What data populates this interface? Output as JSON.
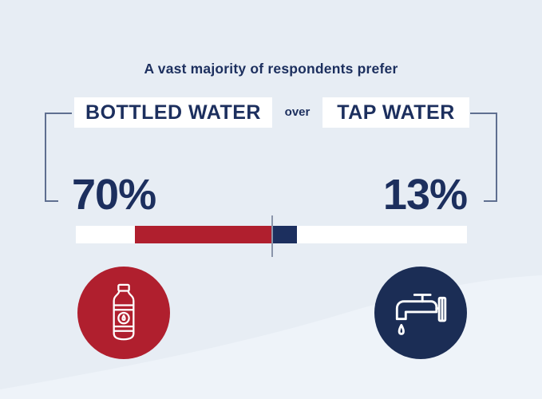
{
  "title": "A vast majority of respondents prefer",
  "comparison": {
    "left_label": "BOTTLED WATER",
    "connector": "over",
    "right_label": "TAP WATER"
  },
  "stats": {
    "left_value": "70%",
    "right_value": "13%"
  },
  "colors": {
    "background": "#e7edf4",
    "wave": "#eef3f9",
    "navy": "#1c2f5e",
    "red": "#b01f2e",
    "bar_track": "#ffffff",
    "bracket": "#5f6f90",
    "center_tick": "#8b95aa"
  },
  "icons": {
    "left": "water-bottle-icon",
    "right": "faucet-icon"
  },
  "chart_data": {
    "type": "bar",
    "categories": [
      "Bottled water",
      "Tap water"
    ],
    "values": [
      70,
      13
    ],
    "value_labels": [
      "70%",
      "13%"
    ],
    "title": "A vast majority of respondents prefer bottled water over tap water",
    "orientation": "diverging-horizontal-from-center",
    "series_colors": [
      "#b01f2e",
      "#1c2f5e"
    ],
    "xlim": [
      0,
      100
    ],
    "legend": false,
    "grid": false
  }
}
